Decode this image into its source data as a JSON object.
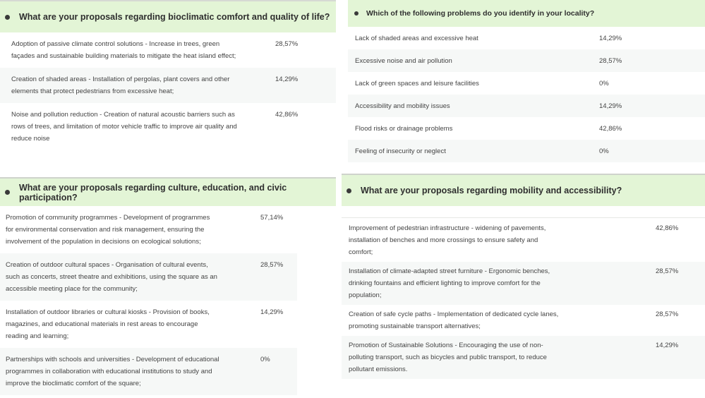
{
  "panels": {
    "bioclimatic": {
      "title": "What are your proposals regarding bioclimatic comfort and quality of life?",
      "rows": [
        {
          "label": "Adoption of passive climate control solutions - Increase in trees, green façades and sustainable building materials to mitigate the heat island effect;",
          "value": "28,57%"
        },
        {
          "label": "Creation of shaded areas - Installation of pergolas, plant covers and other elements that protect pedestrians from excessive heat;",
          "value": "14,29%"
        },
        {
          "label": "Noise and pollution reduction - Creation of natural acoustic barriers such as rows of trees, and limitation of motor vehicle traffic to improve air quality and reduce noise",
          "value": "42,86%"
        }
      ]
    },
    "problems": {
      "title": "Which of the following problems do you identify in your locality?",
      "rows": [
        {
          "label": "Lack of shaded areas and excessive heat",
          "value": "14,29%"
        },
        {
          "label": "Excessive noise and air pollution",
          "value": "28,57%"
        },
        {
          "label": "Lack of green spaces and leisure facilities",
          "value": "0%"
        },
        {
          "label": "Accessibility and mobility issues",
          "value": "14,29%"
        },
        {
          "label": "Flood risks or drainage problems",
          "value": "42,86%"
        },
        {
          "label": "Feeling of insecurity or neglect",
          "value": "0%"
        }
      ]
    },
    "culture": {
      "title": "What are your proposals regarding culture, education, and civic participation?",
      "rows": [
        {
          "label": "Promotion of community programmes - Development of programmes for environmental conservation and risk management, ensuring the involvement of the population in decisions on ecological solutions;",
          "value": "57,14%"
        },
        {
          "label": "Creation of outdoor cultural spaces - Organisation of cultural events, such as concerts, street theatre and exhibitions, using the square as an accessible meeting place for the community;",
          "value": "28,57%"
        },
        {
          "label": "Installation of outdoor libraries or cultural kiosks - Provision of books, magazines, and educational materials in rest areas to encourage reading and learning;",
          "value": "14,29%"
        },
        {
          "label": "Partnerships with schools and universities - Development of educational programmes in collaboration with educational institutions to study and improve the bioclimatic comfort of the square;",
          "value": "0%"
        }
      ]
    },
    "mobility": {
      "title": "What are your proposals regarding mobility and accessibility?",
      "rows": [
        {
          "label": "Improvement of pedestrian infrastructure - widening of pavements, installation of benches and more crossings to ensure safety and comfort;",
          "value": "42,86%"
        },
        {
          "label": "Installation of climate-adapted street furniture - Ergonomic benches, drinking fountains and efficient lighting to improve comfort for the population;",
          "value": "28,57%"
        },
        {
          "label": "Creation of safe cycle paths - Implementation of dedicated cycle lanes, promoting sustainable transport alternatives;",
          "value": "28,57%"
        },
        {
          "label": "Promotion of Sustainable Solutions - Encouraging the use of non-polluting transport, such as bicycles and public transport, to reduce pollutant emissions.",
          "value": "14,29%"
        }
      ]
    }
  },
  "colors": {
    "header_bg": "#e3f5d6",
    "alt_row_bg": "#f6f8f7",
    "text": "#444444"
  }
}
